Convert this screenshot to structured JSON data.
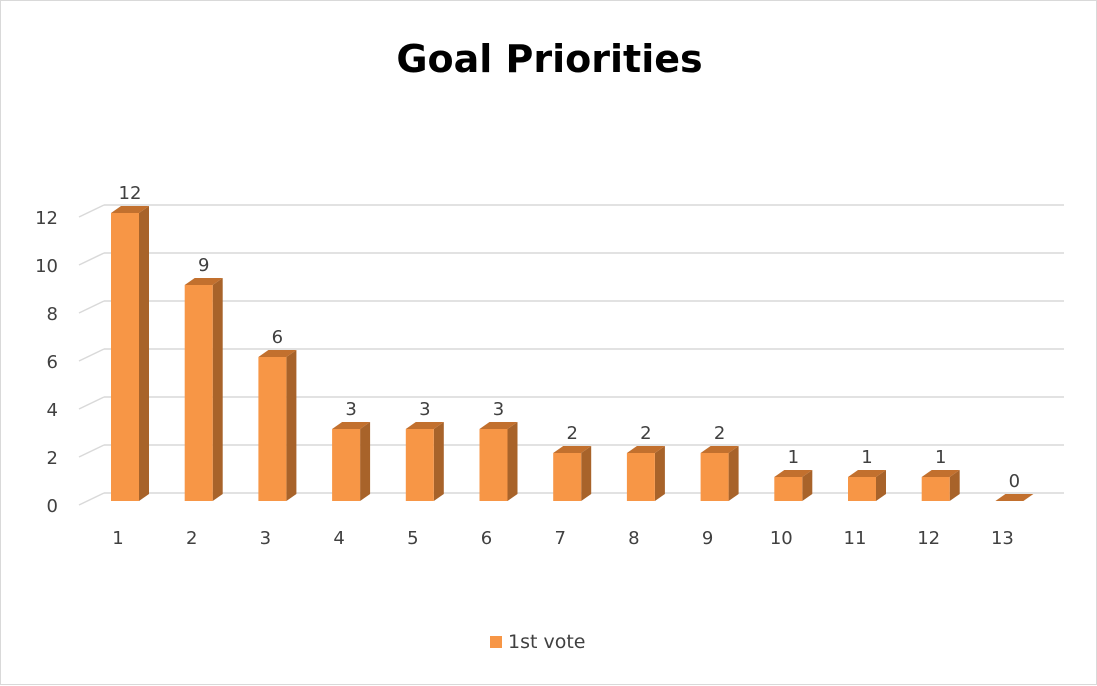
{
  "chart_data": {
    "type": "bar",
    "title": "Goal Priorities",
    "xlabel": "",
    "ylabel": "",
    "categories": [
      "1",
      "2",
      "3",
      "4",
      "5",
      "6",
      "7",
      "8",
      "9",
      "10",
      "11",
      "12",
      "13"
    ],
    "series": [
      {
        "name": "1st vote",
        "values": [
          12,
          9,
          6,
          3,
          3,
          3,
          2,
          2,
          2,
          1,
          1,
          1,
          0
        ],
        "color": "#f79646"
      }
    ],
    "ylim": [
      0,
      12
    ],
    "yticks": [
      "0",
      "2",
      "4",
      "6",
      "8",
      "10",
      "12"
    ],
    "grid": true,
    "legend_position": "bottom",
    "data_labels": true,
    "style": "3d-column"
  }
}
